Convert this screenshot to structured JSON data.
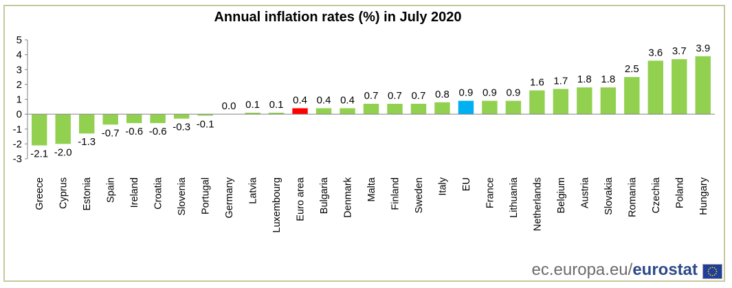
{
  "chart_data": {
    "type": "bar",
    "title": "Annual inflation rates (%) in July 2020",
    "xlabel": "",
    "ylabel": "",
    "ylim": [
      -3,
      5
    ],
    "yticks": [
      -3,
      -2,
      -1,
      0,
      1,
      2,
      3,
      4,
      5
    ],
    "categories": [
      "Greece",
      "Cyprus",
      "Estonia",
      "Spain",
      "Ireland",
      "Croatia",
      "Slovenia",
      "Portugal",
      "Germany",
      "Latvia",
      "Luxembourg",
      "Euro area",
      "Bulgaria",
      "Denmark",
      "Malta",
      "Finland",
      "Sweden",
      "Italy",
      "EU",
      "France",
      "Lithuania",
      "Netherlands",
      "Belgium",
      "Austria",
      "Slovakia",
      "Romania",
      "Czechia",
      "Poland",
      "Hungary"
    ],
    "values": [
      -2.1,
      -2.0,
      -1.3,
      -0.7,
      -0.6,
      -0.6,
      -0.3,
      -0.1,
      0.0,
      0.1,
      0.1,
      0.4,
      0.4,
      0.4,
      0.7,
      0.7,
      0.7,
      0.8,
      0.9,
      0.9,
      0.9,
      1.6,
      1.7,
      1.8,
      1.8,
      2.5,
      3.6,
      3.7,
      3.9
    ],
    "labels": [
      "-2.1",
      "-2.0",
      "-1.3",
      "-0.7",
      "-0.6",
      "-0.6",
      "-0.3",
      "-0.1",
      "0.0",
      "0.1",
      "0.1",
      "0.4",
      "0.4",
      "0.4",
      "0.7",
      "0.7",
      "0.7",
      "0.8",
      "0.9",
      "0.9",
      "0.9",
      "1.6",
      "1.7",
      "1.8",
      "1.8",
      "2.5",
      "3.6",
      "3.7",
      "3.9"
    ],
    "colors": {
      "default": "#92d050",
      "Euro area": "#ff0000",
      "EU": "#00b0f0"
    },
    "grid": false,
    "legend": "none"
  },
  "footer": {
    "source_prefix": "ec.europa.eu/",
    "brand": "eurostat"
  },
  "flag_colors": {
    "field": "#1f3f9a",
    "stars": "#ffdd00"
  }
}
